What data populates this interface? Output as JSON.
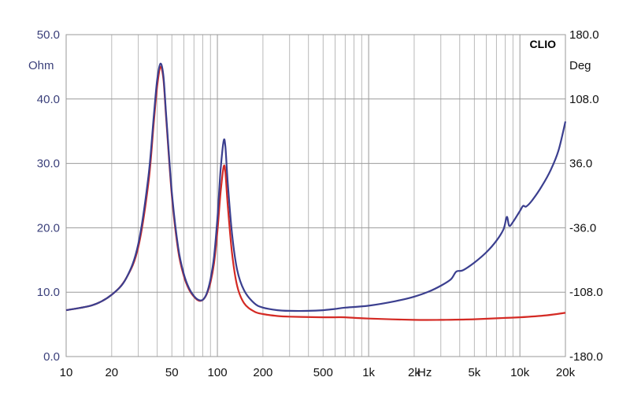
{
  "chart_data": {
    "type": "line",
    "brand_label": "CLIO",
    "x_scale": "log",
    "xlim": [
      10,
      20000
    ],
    "x_ticks": [
      {
        "value": 10,
        "label": "10"
      },
      {
        "value": 20,
        "label": "20"
      },
      {
        "value": 50,
        "label": "50"
      },
      {
        "value": 100,
        "label": "100"
      },
      {
        "value": 200,
        "label": "200"
      },
      {
        "value": 500,
        "label": "500"
      },
      {
        "value": 1000,
        "label": "1k"
      },
      {
        "value": 2000,
        "label": "2k"
      },
      {
        "value": 5000,
        "label": "5k"
      },
      {
        "value": 10000,
        "label": "10k"
      },
      {
        "value": 20000,
        "label": "20k"
      }
    ],
    "x_unit_label": "Hz",
    "y_left": {
      "unit": "Ohm",
      "ylim": [
        0,
        50
      ],
      "ticks": [
        {
          "value": 0,
          "label": "0.0"
        },
        {
          "value": 10,
          "label": "10.0"
        },
        {
          "value": 20,
          "label": "20.0"
        },
        {
          "value": 30,
          "label": "30.0"
        },
        {
          "value": 40,
          "label": "40.0"
        },
        {
          "value": 50,
          "label": "50.0"
        }
      ]
    },
    "y_right": {
      "unit": "Deg",
      "ylim": [
        -180,
        180
      ],
      "ticks": [
        {
          "value": -180,
          "label": "-180.0"
        },
        {
          "value": -108,
          "label": "-108.0"
        },
        {
          "value": -36,
          "label": "-36.0"
        },
        {
          "value": 36,
          "label": "36.0"
        },
        {
          "value": 108,
          "label": "108.0"
        },
        {
          "value": 180,
          "label": "180.0"
        }
      ]
    },
    "grid": true,
    "series": [
      {
        "color": "#3b3f8f",
        "axis": "left",
        "points": [
          [
            10,
            7.2
          ],
          [
            15,
            8.0
          ],
          [
            20,
            9.6
          ],
          [
            25,
            12.2
          ],
          [
            30,
            17.5
          ],
          [
            35,
            28.0
          ],
          [
            38,
            37.5
          ],
          [
            40,
            43.0
          ],
          [
            42,
            45.5
          ],
          [
            44,
            43.5
          ],
          [
            46,
            37.0
          ],
          [
            50,
            25.5
          ],
          [
            55,
            17.0
          ],
          [
            60,
            12.8
          ],
          [
            65,
            10.6
          ],
          [
            70,
            9.4
          ],
          [
            75,
            8.8
          ],
          [
            80,
            8.8
          ],
          [
            85,
            9.8
          ],
          [
            90,
            12.0
          ],
          [
            95,
            15.5
          ],
          [
            100,
            21.5
          ],
          [
            105,
            29.0
          ],
          [
            110,
            33.5
          ],
          [
            113,
            32.5
          ],
          [
            117,
            27.0
          ],
          [
            125,
            19.0
          ],
          [
            135,
            13.5
          ],
          [
            150,
            10.3
          ],
          [
            175,
            8.3
          ],
          [
            200,
            7.6
          ],
          [
            250,
            7.2
          ],
          [
            300,
            7.1
          ],
          [
            400,
            7.1
          ],
          [
            500,
            7.2
          ],
          [
            600,
            7.4
          ],
          [
            700,
            7.6
          ],
          [
            1000,
            7.9
          ],
          [
            1500,
            8.6
          ],
          [
            2000,
            9.3
          ],
          [
            2500,
            10.1
          ],
          [
            3000,
            11.0
          ],
          [
            3500,
            12.0
          ],
          [
            3800,
            13.2
          ],
          [
            4200,
            13.4
          ],
          [
            5000,
            14.6
          ],
          [
            6000,
            16.2
          ],
          [
            7000,
            18.0
          ],
          [
            7800,
            19.8
          ],
          [
            8200,
            21.7
          ],
          [
            8500,
            20.3
          ],
          [
            9000,
            20.9
          ],
          [
            10000,
            22.6
          ],
          [
            10500,
            23.4
          ],
          [
            11000,
            23.3
          ],
          [
            12000,
            24.2
          ],
          [
            14000,
            26.5
          ],
          [
            16000,
            29.0
          ],
          [
            18000,
            32.0
          ],
          [
            20000,
            36.5
          ]
        ]
      },
      {
        "color": "#d42a24",
        "axis": "left",
        "points": [
          [
            10,
            7.2
          ],
          [
            15,
            8.0
          ],
          [
            20,
            9.6
          ],
          [
            25,
            12.2
          ],
          [
            30,
            17.0
          ],
          [
            35,
            27.0
          ],
          [
            38,
            36.5
          ],
          [
            40,
            42.0
          ],
          [
            42,
            45.0
          ],
          [
            44,
            43.0
          ],
          [
            46,
            36.5
          ],
          [
            50,
            25.0
          ],
          [
            55,
            16.5
          ],
          [
            60,
            12.5
          ],
          [
            65,
            10.4
          ],
          [
            70,
            9.3
          ],
          [
            75,
            8.7
          ],
          [
            80,
            8.8
          ],
          [
            85,
            9.7
          ],
          [
            90,
            11.5
          ],
          [
            95,
            14.5
          ],
          [
            100,
            19.5
          ],
          [
            105,
            25.5
          ],
          [
            110,
            29.5
          ],
          [
            113,
            28.5
          ],
          [
            117,
            23.5
          ],
          [
            125,
            16.0
          ],
          [
            135,
            11.0
          ],
          [
            150,
            8.3
          ],
          [
            175,
            7.0
          ],
          [
            200,
            6.6
          ],
          [
            250,
            6.3
          ],
          [
            300,
            6.2
          ],
          [
            500,
            6.1
          ],
          [
            600,
            6.1
          ],
          [
            700,
            6.1
          ],
          [
            1000,
            5.9
          ],
          [
            2000,
            5.7
          ],
          [
            3000,
            5.7
          ],
          [
            5000,
            5.8
          ],
          [
            8000,
            6.0
          ],
          [
            10000,
            6.1
          ],
          [
            15000,
            6.4
          ],
          [
            20000,
            6.8
          ]
        ]
      }
    ]
  }
}
